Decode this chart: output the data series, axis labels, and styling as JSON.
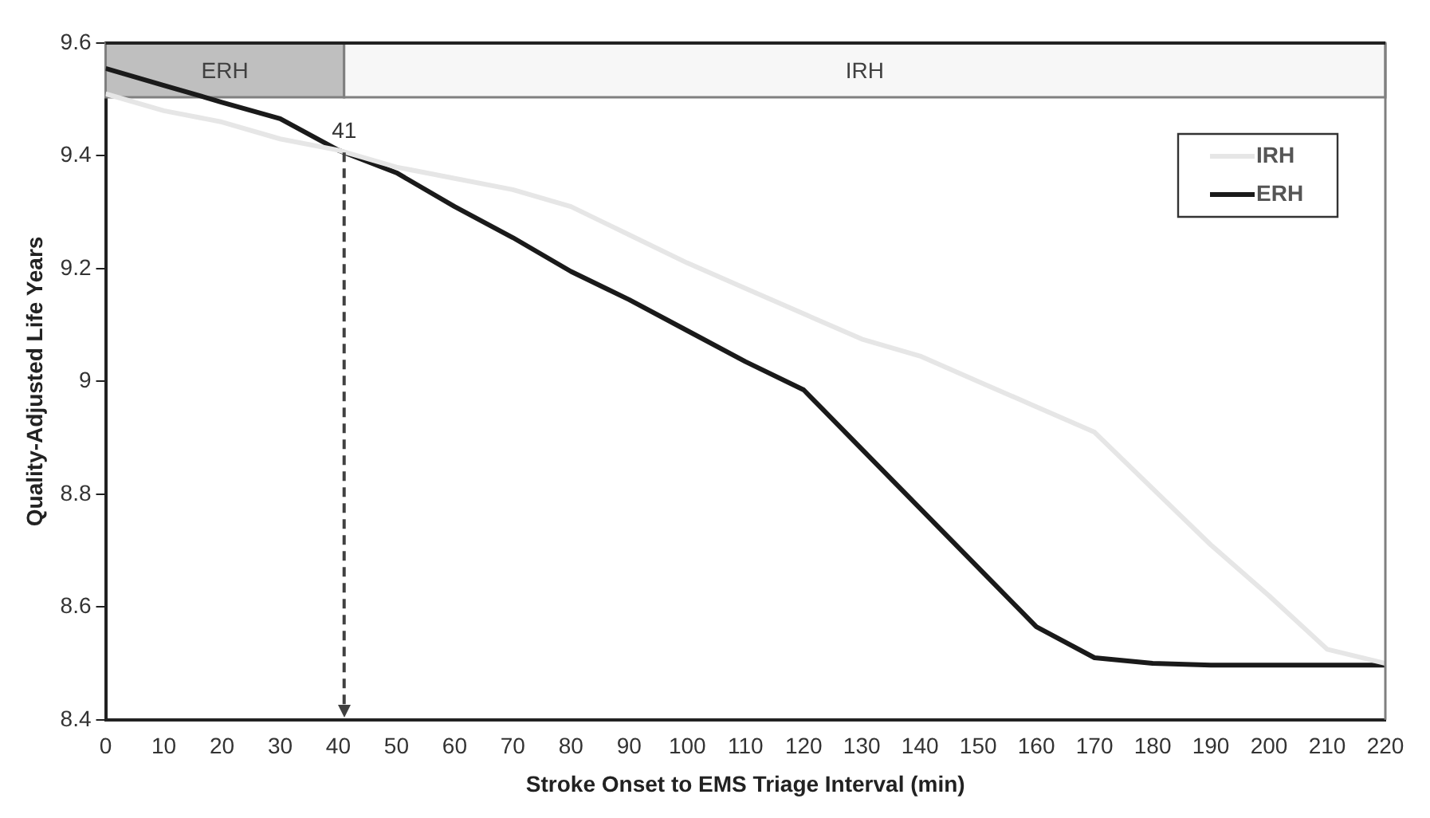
{
  "chart_data": {
    "type": "line",
    "xlabel": "Stroke Onset to EMS Triage Interval (min)",
    "ylabel": "Quality-Adjusted Life Years",
    "x": [
      0,
      10,
      20,
      30,
      40,
      50,
      60,
      70,
      80,
      90,
      100,
      110,
      120,
      130,
      140,
      150,
      160,
      170,
      180,
      190,
      200,
      210,
      220
    ],
    "series": [
      {
        "name": "IRH",
        "color": "#e6e6e6",
        "values": [
          9.51,
          9.48,
          9.46,
          9.43,
          9.41,
          9.38,
          9.36,
          9.34,
          9.31,
          9.26,
          9.21,
          9.165,
          9.12,
          9.075,
          9.045,
          9.0,
          8.955,
          8.91,
          8.81,
          8.71,
          8.62,
          8.525,
          8.5
        ]
      },
      {
        "name": "ERH",
        "color": "#1a1a1a",
        "values": [
          9.555,
          9.525,
          9.495,
          9.466,
          9.41,
          9.37,
          9.31,
          9.255,
          9.195,
          9.145,
          9.09,
          9.035,
          8.985,
          8.88,
          8.775,
          8.67,
          8.565,
          8.51,
          8.5,
          8.497,
          8.497,
          8.497,
          8.497
        ]
      }
    ],
    "xlim": [
      0,
      220
    ],
    "xticks": [
      0,
      10,
      20,
      30,
      40,
      50,
      60,
      70,
      80,
      90,
      100,
      110,
      120,
      130,
      140,
      150,
      160,
      170,
      180,
      190,
      200,
      210,
      220
    ],
    "ylim": [
      8.4,
      9.6
    ],
    "yticks": [
      8.4,
      8.6,
      8.8,
      {
        "value": 9,
        "label": "9"
      },
      9.2,
      9.4,
      9.6
    ],
    "ref_lines": [
      {
        "axis": "x",
        "value": 41,
        "label": "41",
        "line_style": "dashed",
        "color": "#404040"
      }
    ],
    "bands": [
      {
        "axis": "x",
        "from": 0,
        "to": 41,
        "label": "ERH",
        "color": "#bfbfbf"
      },
      {
        "axis": "x",
        "from": 41,
        "to": 220,
        "label": "IRH",
        "color": "#f7f7f7"
      }
    ],
    "grid": false,
    "legend": "top right",
    "marker": "none",
    "line_style": "solid"
  }
}
